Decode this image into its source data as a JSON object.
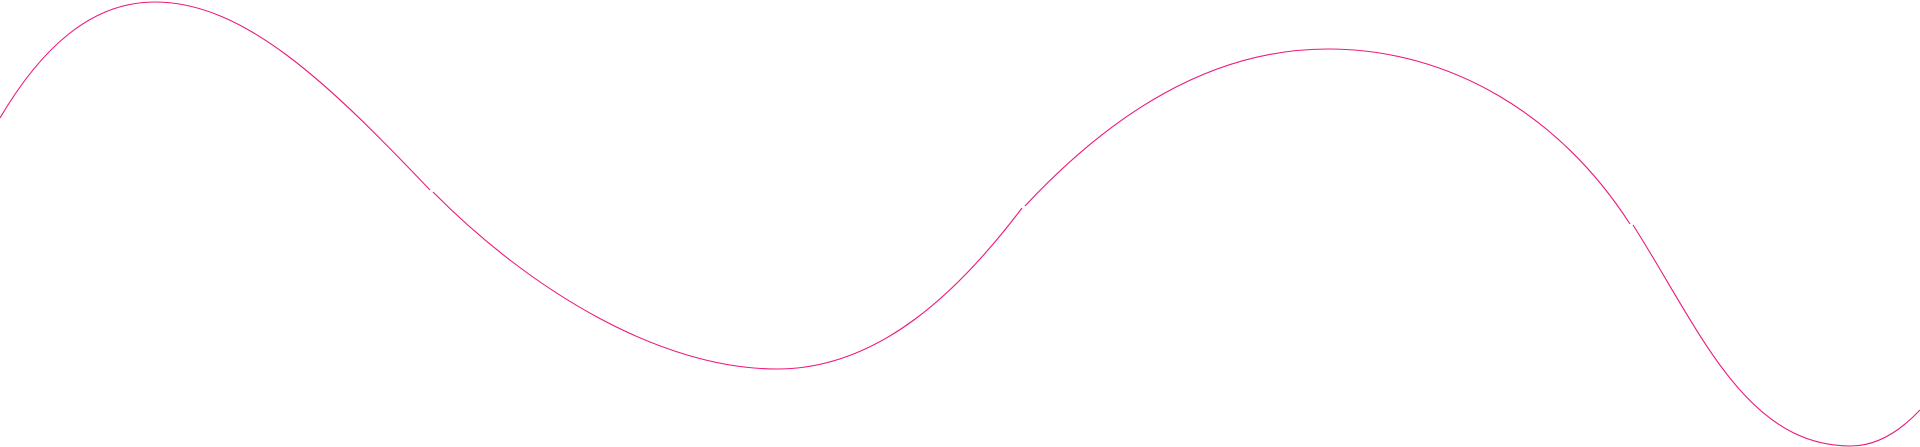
{
  "decoration": {
    "type": "wave-line",
    "stroke_color": "#ec1a7c",
    "background_color": "#ffffff",
    "segments": 4
  }
}
